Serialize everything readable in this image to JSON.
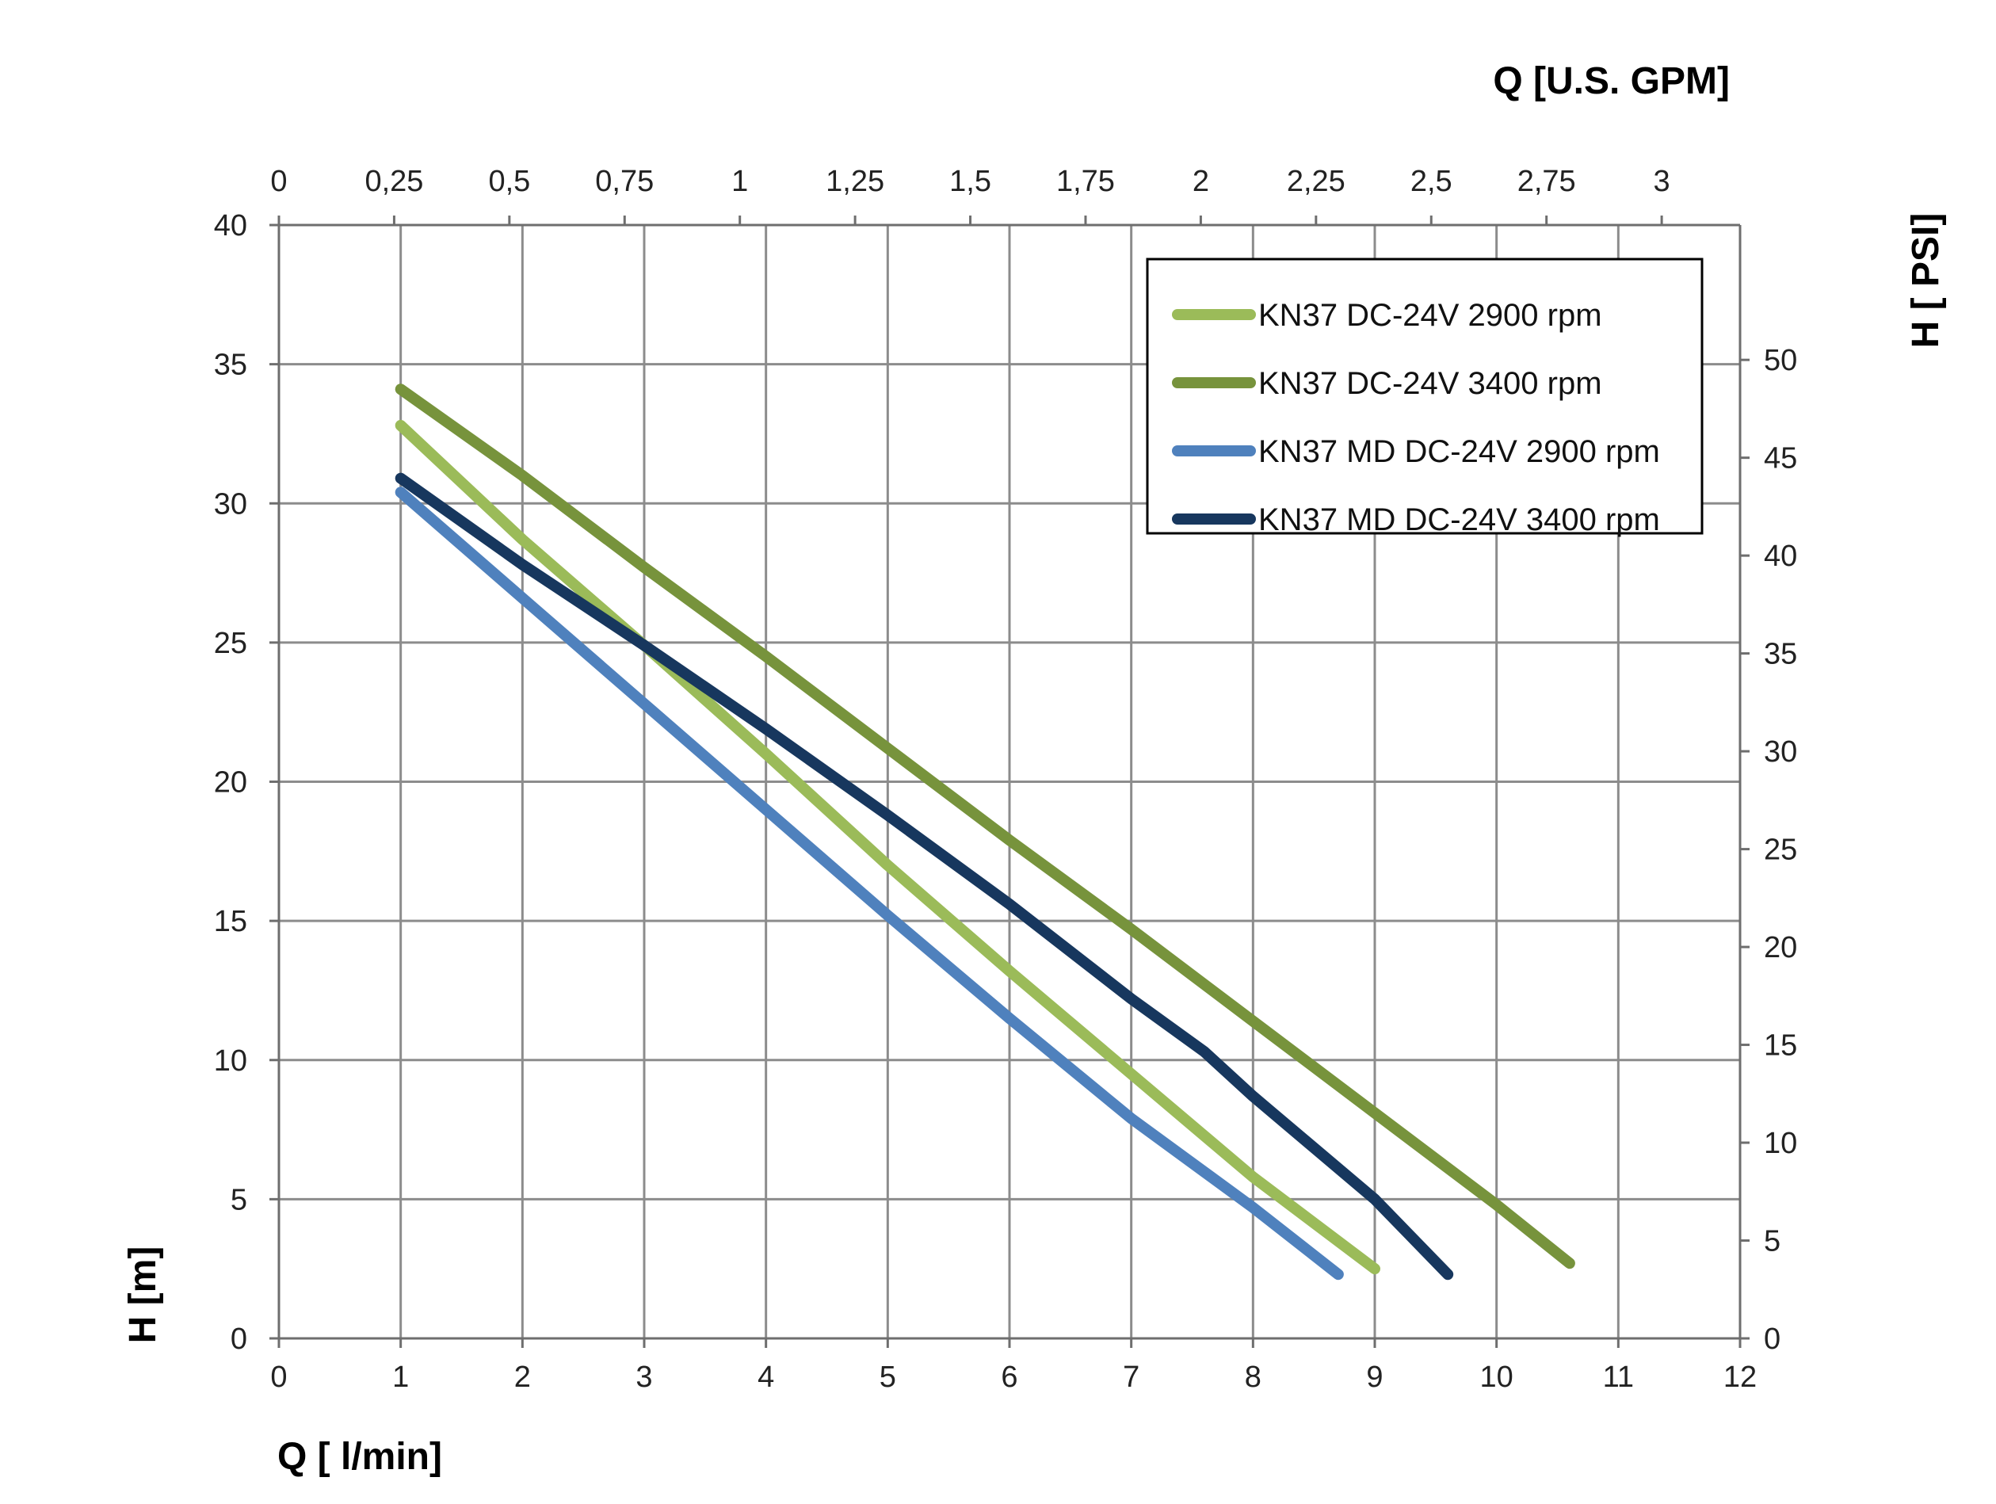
{
  "chart_data": {
    "type": "line",
    "x_axis_bottom": {
      "label": "Q [ l/min]",
      "range": [
        0,
        12
      ],
      "ticks": [
        "0",
        "1",
        "2",
        "3",
        "4",
        "5",
        "6",
        "7",
        "8",
        "9",
        "10",
        "11",
        "12"
      ]
    },
    "x_axis_top": {
      "label": "Q  [U.S. GPM]",
      "range": [
        0,
        3.17
      ],
      "ticks": [
        "0",
        "0,25",
        "0,5",
        "0,75",
        "1",
        "1,25",
        "1,5",
        "1,75",
        "2",
        "2,25",
        "2,5",
        "2,75",
        "3"
      ]
    },
    "y_axis_left": {
      "label": "H [m]",
      "range": [
        0,
        40
      ],
      "ticks": [
        "0",
        "5",
        "10",
        "15",
        "20",
        "25",
        "30",
        "35",
        "40"
      ]
    },
    "y_axis_right": {
      "label": "H [ PSI]",
      "range": [
        0,
        56.89
      ],
      "ticks": [
        "0",
        "5",
        "10",
        "15",
        "20",
        "25",
        "30",
        "35",
        "40",
        "45",
        "50"
      ]
    },
    "grid": true,
    "legend_position": "top-right",
    "series": [
      {
        "name": "KN37 DC-24V 2900 rpm",
        "color": "#9bbb59",
        "points": [
          [
            1,
            32.8
          ],
          [
            2,
            28.7
          ],
          [
            3,
            24.9
          ],
          [
            4,
            21.0
          ],
          [
            5,
            17.0
          ],
          [
            6,
            13.2
          ],
          [
            7,
            9.5
          ],
          [
            8,
            5.8
          ],
          [
            9,
            2.5
          ]
        ]
      },
      {
        "name": "KN37 DC-24V 3400 rpm",
        "color": "#77933c",
        "points": [
          [
            1,
            34.1
          ],
          [
            2,
            31.0
          ],
          [
            3,
            27.7
          ],
          [
            4,
            24.5
          ],
          [
            5,
            21.2
          ],
          [
            6,
            17.9
          ],
          [
            7,
            14.7
          ],
          [
            8,
            11.4
          ],
          [
            9,
            8.1
          ],
          [
            10,
            4.8
          ],
          [
            10.6,
            2.7
          ]
        ]
      },
      {
        "name": "KN37 MD DC-24V 2900 rpm",
        "color": "#4f81bd",
        "points": [
          [
            1,
            30.4
          ],
          [
            2,
            26.6
          ],
          [
            3,
            22.8
          ],
          [
            4,
            19.0
          ],
          [
            5,
            15.2
          ],
          [
            6,
            11.5
          ],
          [
            7,
            7.9
          ],
          [
            8,
            4.7
          ],
          [
            8.7,
            2.3
          ]
        ]
      },
      {
        "name": "KN37 MD DC-24V 3400 rpm",
        "color": "#17375e",
        "points": [
          [
            1,
            30.9
          ],
          [
            2,
            27.8
          ],
          [
            3,
            24.9
          ],
          [
            4,
            21.9
          ],
          [
            5,
            18.8
          ],
          [
            6,
            15.6
          ],
          [
            7,
            12.2
          ],
          [
            7.6,
            10.3
          ],
          [
            8,
            8.7
          ],
          [
            9,
            5.0
          ],
          [
            9.6,
            2.3
          ]
        ]
      }
    ]
  }
}
